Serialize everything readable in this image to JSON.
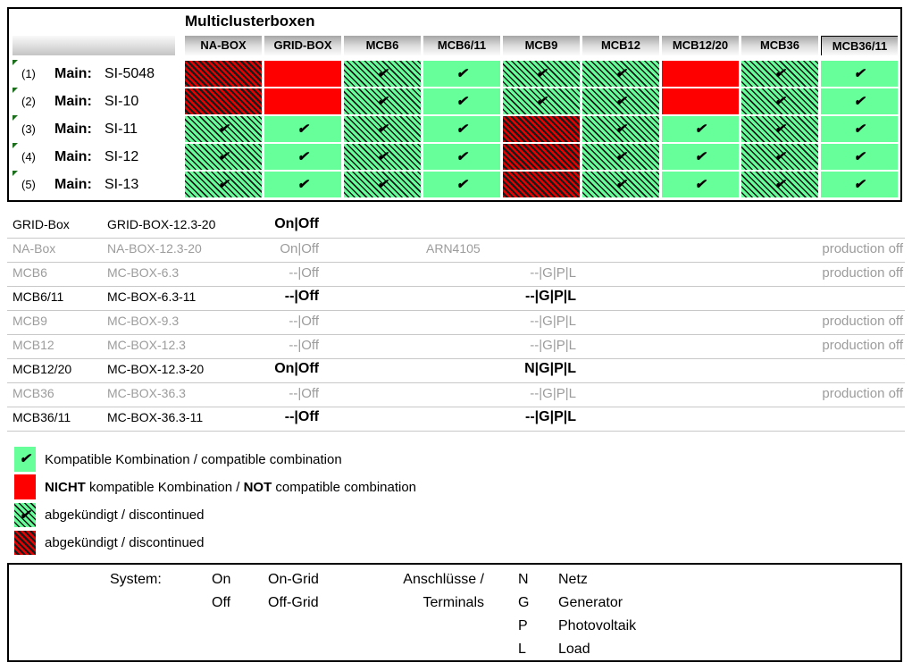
{
  "title": "Multiclusterboxen",
  "colors": {
    "compatible_green": "#66ff99",
    "incompatible_red": "#ff0000",
    "discontinued_hatch": "#1a1a1a",
    "inactive_gray": "#9c9c9c",
    "marker_green": "#1d6f1d"
  },
  "check_icon": "✔",
  "matrix": {
    "columns": [
      "NA-BOX",
      "GRID-BOX",
      "MCB6",
      "MCB6/11",
      "MCB9",
      "MCB12",
      "MCB12/20",
      "MCB36",
      "MCB36/11"
    ],
    "cell_types_legend": "c=compatible, n=not-compatible, dc=discontinued-compatible, dn=discontinued-not-compatible",
    "rows": [
      {
        "index": "(1)",
        "label": "Main:",
        "model": "SI-5048",
        "cells": [
          "dn",
          "n",
          "dc",
          "c",
          "dc",
          "dc",
          "n",
          "dc",
          "c"
        ]
      },
      {
        "index": "(2)",
        "label": "Main:",
        "model": "SI-10",
        "cells": [
          "dn",
          "n",
          "dc",
          "c",
          "dc",
          "dc",
          "n",
          "dc",
          "c"
        ]
      },
      {
        "index": "(3)",
        "label": "Main:",
        "model": "SI-11",
        "cells": [
          "dc",
          "c",
          "dc",
          "c",
          "dn",
          "dc",
          "c",
          "dc",
          "c"
        ]
      },
      {
        "index": "(4)",
        "label": "Main:",
        "model": "SI-12",
        "cells": [
          "dc",
          "c",
          "dc",
          "c",
          "dn",
          "dc",
          "c",
          "dc",
          "c"
        ]
      },
      {
        "index": "(5)",
        "label": "Main:",
        "model": "SI-13",
        "cells": [
          "dc",
          "c",
          "dc",
          "c",
          "dn",
          "dc",
          "c",
          "dc",
          "c"
        ]
      }
    ]
  },
  "boxes": [
    {
      "name": "GRID-Box",
      "model": "GRID-BOX-12.3-20",
      "status": "On|Off",
      "note": "",
      "terminals": "",
      "production": "",
      "active": true
    },
    {
      "name": "NA-Box",
      "model": "NA-BOX-12.3-20",
      "status": "On|Off",
      "note": "ARN4105",
      "terminals": "",
      "production": "production off",
      "active": false
    },
    {
      "name": "MCB6",
      "model": "MC-BOX-6.3",
      "status": "--|Off",
      "note": "",
      "terminals": "--|G|P|L",
      "production": "production off",
      "active": false
    },
    {
      "name": "MCB6/11",
      "model": "MC-BOX-6.3-11",
      "status": "--|Off",
      "note": "",
      "terminals": "--|G|P|L",
      "production": "",
      "active": true
    },
    {
      "name": "MCB9",
      "model": "MC-BOX-9.3",
      "status": "--|Off",
      "note": "",
      "terminals": "--|G|P|L",
      "production": "production off",
      "active": false
    },
    {
      "name": "MCB12",
      "model": "MC-BOX-12.3",
      "status": "--|Off",
      "note": "",
      "terminals": "--|G|P|L",
      "production": "production off",
      "active": false
    },
    {
      "name": "MCB12/20",
      "model": "MC-BOX-12.3-20",
      "status": "On|Off",
      "note": "",
      "terminals": "N|G|P|L",
      "production": "",
      "active": true
    },
    {
      "name": "MCB36",
      "model": "MC-BOX-36.3",
      "status": "--|Off",
      "note": "",
      "terminals": "--|G|P|L",
      "production": "production off",
      "active": false
    },
    {
      "name": "MCB36/11",
      "model": "MC-BOX-36.3-11",
      "status": "--|Off",
      "note": "",
      "terminals": "--|G|P|L",
      "production": "",
      "active": true
    }
  ],
  "legend": [
    {
      "swatch": "c",
      "check": true,
      "parts": [
        {
          "t": "Kompatible Kombination / compatible combination",
          "b": false
        }
      ]
    },
    {
      "swatch": "n",
      "check": false,
      "parts": [
        {
          "t": "NICHT",
          "b": true
        },
        {
          "t": " kompatible Kombination / ",
          "b": false
        },
        {
          "t": "NOT",
          "b": true
        },
        {
          "t": " compatible combination",
          "b": false
        }
      ]
    },
    {
      "swatch": "dc",
      "check": true,
      "parts": [
        {
          "t": "abgekündigt / discontinued",
          "b": false
        }
      ]
    },
    {
      "swatch": "dn",
      "check": false,
      "parts": [
        {
          "t": "abgekündigt / discontinued",
          "b": false
        }
      ]
    }
  ],
  "footer": {
    "system_label": "System:",
    "on": "On",
    "off": "Off",
    "on_grid": "On-Grid",
    "off_grid": "Off-Grid",
    "terminals_label_de": "Anschlüsse /",
    "terminals_label_en": "Terminals",
    "keys": [
      {
        "k": "N",
        "v": "Netz"
      },
      {
        "k": "G",
        "v": "Generator"
      },
      {
        "k": "P",
        "v": "Photovoltaik"
      },
      {
        "k": "L",
        "v": "Load"
      }
    ]
  }
}
